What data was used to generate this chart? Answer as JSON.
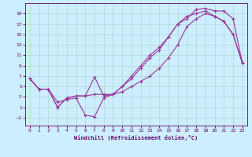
{
  "xlabel": "Windchill (Refroidissement éolien,°C)",
  "bg_color": "#cceeff",
  "grid_color": "#aaddcc",
  "line_color": "#993399",
  "xlim": [
    -0.5,
    23.5
  ],
  "ylim": [
    -2.5,
    21.0
  ],
  "xticks": [
    0,
    1,
    2,
    3,
    4,
    5,
    6,
    7,
    8,
    9,
    10,
    11,
    12,
    13,
    14,
    15,
    16,
    17,
    18,
    19,
    20,
    21,
    22,
    23
  ],
  "yticks": [
    -1,
    1,
    3,
    5,
    7,
    9,
    11,
    13,
    15,
    17,
    19
  ],
  "line1_x": [
    0,
    1,
    2,
    3,
    4,
    5,
    6,
    7,
    8,
    9,
    10,
    11,
    12,
    13,
    14,
    15,
    16,
    17,
    18,
    19,
    20,
    21,
    22,
    23
  ],
  "line1_y": [
    6.5,
    4.5,
    4.5,
    1.0,
    2.8,
    3.2,
    3.2,
    6.8,
    3.2,
    3.5,
    5.0,
    7.0,
    9.0,
    11.0,
    12.5,
    14.5,
    17.0,
    18.0,
    19.8,
    20.0,
    19.5,
    19.5,
    18.0,
    9.5
  ],
  "line2_x": [
    0,
    1,
    2,
    3,
    4,
    5,
    6,
    7,
    8,
    9,
    10,
    11,
    12,
    13,
    14,
    15,
    16,
    17,
    18,
    19,
    20,
    21,
    22,
    23
  ],
  "line2_y": [
    6.5,
    4.5,
    4.5,
    1.0,
    2.8,
    3.2,
    3.2,
    3.5,
    3.5,
    3.5,
    5.0,
    6.5,
    8.5,
    10.5,
    12.0,
    14.5,
    17.0,
    18.5,
    19.0,
    19.5,
    18.5,
    17.5,
    15.0,
    9.5
  ],
  "line3_x": [
    0,
    1,
    2,
    3,
    4,
    5,
    6,
    7,
    8,
    9,
    10,
    11,
    12,
    13,
    14,
    15,
    16,
    17,
    18,
    19,
    20,
    21,
    22,
    23
  ],
  "line3_y": [
    6.5,
    4.5,
    4.5,
    2.0,
    2.5,
    2.8,
    -0.5,
    -0.8,
    2.8,
    3.5,
    4.0,
    5.0,
    6.0,
    7.0,
    8.5,
    10.5,
    13.0,
    16.5,
    18.0,
    19.0,
    18.5,
    17.5,
    15.0,
    9.5
  ]
}
